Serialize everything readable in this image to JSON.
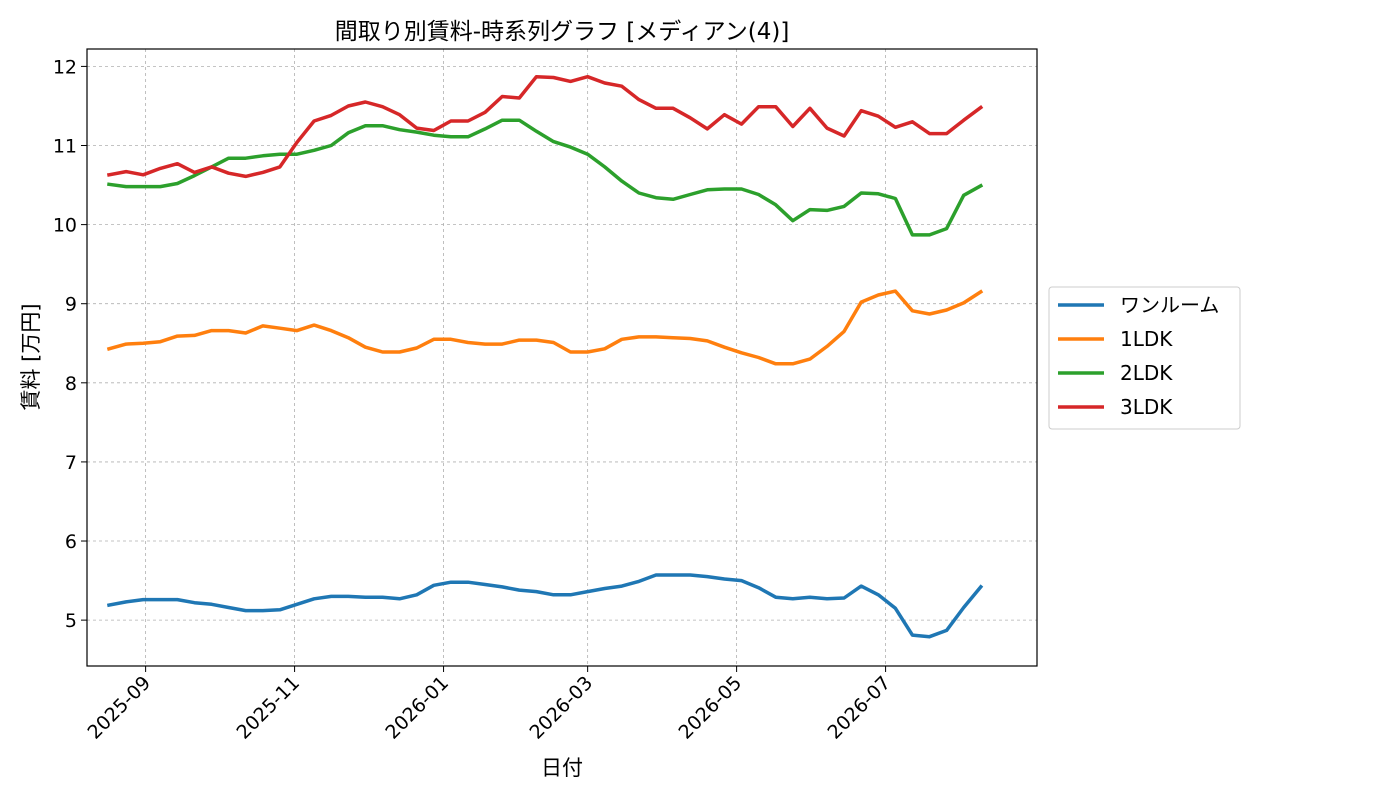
{
  "chart_data": {
    "type": "line",
    "title": "間取り別賃料-時系列グラフ [メディアン(4)]",
    "xlabel": "日付",
    "ylabel": "賃料 [万円]",
    "x_ticks": [
      "2025-09",
      "2025-11",
      "2026-01",
      "2026-03",
      "2026-05",
      "2026-07"
    ],
    "x_tick_dates": [
      "2025-09-01",
      "2025-11-01",
      "2026-01-01",
      "2026-03-01",
      "2026-05-01",
      "2026-07-01"
    ],
    "xlim": [
      "2025-08-08",
      "2026-09-01"
    ],
    "ylim": [
      4.42,
      12.22
    ],
    "y_ticks": [
      5,
      6,
      7,
      8,
      9,
      10,
      11,
      12
    ],
    "grid": true,
    "legend_position": "outside-right",
    "x": [
      "2025-08-17",
      "2025-08-24",
      "2025-08-31",
      "2025-09-07",
      "2025-09-14",
      "2025-09-21",
      "2025-09-28",
      "2025-10-05",
      "2025-10-12",
      "2025-10-19",
      "2025-10-26",
      "2025-11-02",
      "2025-11-09",
      "2025-11-16",
      "2025-11-23",
      "2025-11-30",
      "2025-12-07",
      "2025-12-14",
      "2025-12-21",
      "2025-12-28",
      "2026-01-04",
      "2026-01-11",
      "2026-01-18",
      "2026-01-25",
      "2026-02-01",
      "2026-02-08",
      "2026-02-15",
      "2026-02-22",
      "2026-03-01",
      "2026-03-08",
      "2026-03-15",
      "2026-03-22",
      "2026-03-29",
      "2026-04-05",
      "2026-04-12",
      "2026-04-19",
      "2026-04-26",
      "2026-05-03",
      "2026-05-10",
      "2026-05-17",
      "2026-05-24",
      "2026-05-31",
      "2026-06-07",
      "2026-06-14",
      "2026-06-21",
      "2026-06-28",
      "2026-07-05",
      "2026-07-12",
      "2026-07-19",
      "2026-07-26",
      "2026-08-02",
      "2026-08-09",
      "2026-08-16"
    ],
    "series": [
      {
        "name": "ワンルーム",
        "color": "#1f77b4",
        "values": [
          5.19,
          5.23,
          5.26,
          5.26,
          5.26,
          5.22,
          5.2,
          5.16,
          5.12,
          5.12,
          5.13,
          5.2,
          5.27,
          5.3,
          5.3,
          5.29,
          5.29,
          5.27,
          5.32,
          5.44,
          5.48,
          5.48,
          5.45,
          5.42,
          5.38,
          5.36,
          5.32,
          5.32,
          5.36,
          5.4,
          5.43,
          5.49,
          5.57,
          5.57,
          5.57,
          5.55,
          5.52,
          5.5,
          5.41,
          5.29,
          5.27,
          5.29,
          5.27,
          5.28,
          5.43,
          5.32,
          5.15,
          4.81,
          4.79,
          4.87,
          5.16,
          5.42,
          null
        ]
      },
      {
        "name": "1LDK",
        "color": "#ff7f0e",
        "values": [
          8.43,
          8.49,
          8.5,
          8.52,
          8.59,
          8.6,
          8.66,
          8.66,
          8.63,
          8.72,
          8.69,
          8.66,
          8.73,
          8.66,
          8.57,
          8.45,
          8.39,
          8.39,
          8.44,
          8.55,
          8.55,
          8.51,
          8.49,
          8.49,
          8.54,
          8.54,
          8.51,
          8.39,
          8.39,
          8.43,
          8.55,
          8.58,
          8.58,
          8.57,
          8.56,
          8.53,
          8.45,
          8.38,
          8.32,
          8.24,
          8.24,
          8.3,
          8.46,
          8.65,
          9.02,
          9.11,
          9.16,
          8.91,
          8.87,
          8.92,
          9.01,
          9.15,
          null
        ]
      },
      {
        "name": "2LDK",
        "color": "#2ca02c",
        "values": [
          10.51,
          10.48,
          10.48,
          10.48,
          10.52,
          10.62,
          10.73,
          10.84,
          10.84,
          10.87,
          10.89,
          10.89,
          10.94,
          11.0,
          11.16,
          11.25,
          11.25,
          11.2,
          11.17,
          11.13,
          11.11,
          11.11,
          11.21,
          11.32,
          11.32,
          11.18,
          11.05,
          10.98,
          10.89,
          10.73,
          10.55,
          10.4,
          10.34,
          10.32,
          10.38,
          10.44,
          10.45,
          10.45,
          10.38,
          10.25,
          10.05,
          10.19,
          10.18,
          10.23,
          10.4,
          10.39,
          10.33,
          9.87,
          9.87,
          9.95,
          10.37,
          10.49,
          null
        ]
      },
      {
        "name": "3LDK",
        "color": "#d62728",
        "values": [
          10.63,
          10.67,
          10.63,
          10.71,
          10.77,
          10.66,
          10.73,
          10.65,
          10.61,
          10.66,
          10.73,
          11.04,
          11.31,
          11.38,
          11.5,
          11.55,
          11.49,
          11.39,
          11.22,
          11.19,
          11.31,
          11.31,
          11.42,
          11.62,
          11.6,
          11.87,
          11.86,
          11.81,
          11.87,
          11.79,
          11.75,
          11.58,
          11.47,
          11.47,
          11.35,
          11.21,
          11.39,
          11.27,
          11.49,
          11.49,
          11.24,
          11.47,
          11.22,
          11.12,
          11.44,
          11.37,
          11.23,
          11.3,
          11.15,
          11.15,
          11.32,
          11.48,
          null
        ]
      }
    ]
  }
}
